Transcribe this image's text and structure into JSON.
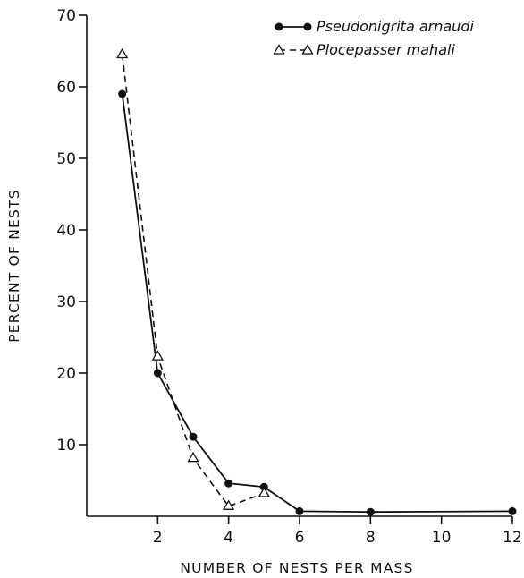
{
  "chart_data": {
    "type": "line",
    "xlabel": "NUMBER OF NESTS PER MASS",
    "ylabel": "PERCENT OF NESTS",
    "xlim": [
      0,
      12
    ],
    "ylim": [
      0,
      70
    ],
    "x_ticks": [
      2,
      4,
      6,
      8,
      10,
      12
    ],
    "y_ticks": [
      10,
      20,
      30,
      40,
      50,
      60,
      70
    ],
    "grid": false,
    "legend_position": "top-right",
    "series": [
      {
        "name": "Pseudonigrita arnaudi",
        "marker": "filled-circle",
        "line": "solid",
        "x": [
          1,
          2,
          3,
          4,
          5,
          6,
          8,
          12
        ],
        "y": [
          59,
          20,
          11.1,
          4.6,
          4.1,
          0.7,
          0.6,
          0.7
        ]
      },
      {
        "name": "Plocepasser mahali",
        "marker": "open-triangle",
        "line": "dashed",
        "x": [
          1,
          2,
          3,
          4,
          5
        ],
        "y": [
          64.5,
          22.3,
          8.1,
          1.4,
          3.2
        ]
      }
    ]
  }
}
